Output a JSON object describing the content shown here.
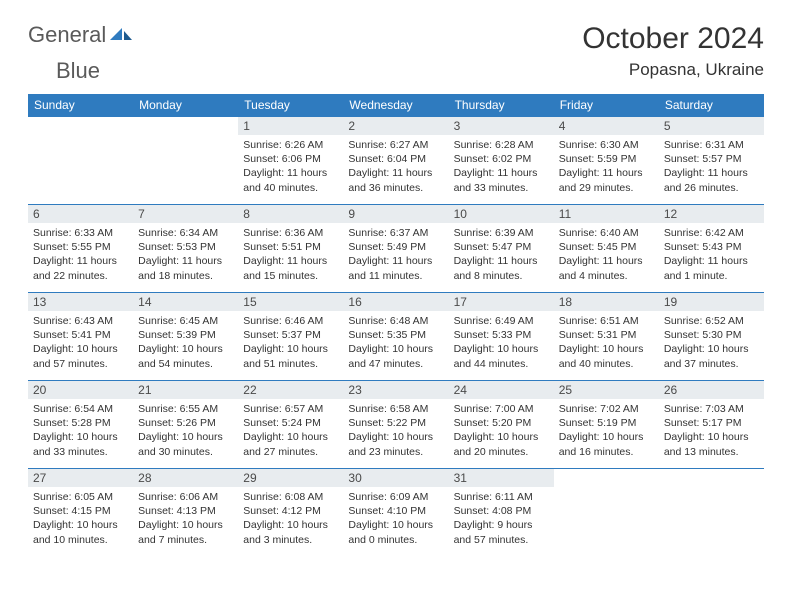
{
  "logo": {
    "text1": "General",
    "text2": "Blue"
  },
  "header": {
    "title": "October 2024",
    "location": "Popasna, Ukraine"
  },
  "colors": {
    "header_bg": "#2f7bbf",
    "header_text": "#ffffff",
    "daynum_bg": "#e8ecef",
    "cell_border": "#2f7bbf",
    "body_text": "#333333",
    "logo_gray": "#5a5a5a",
    "logo_blue": "#2f7bbf"
  },
  "weekdays": [
    "Sunday",
    "Monday",
    "Tuesday",
    "Wednesday",
    "Thursday",
    "Friday",
    "Saturday"
  ],
  "weeks": [
    [
      null,
      null,
      {
        "n": "1",
        "sr": "6:26 AM",
        "ss": "6:06 PM",
        "dl": "11 hours and 40 minutes."
      },
      {
        "n": "2",
        "sr": "6:27 AM",
        "ss": "6:04 PM",
        "dl": "11 hours and 36 minutes."
      },
      {
        "n": "3",
        "sr": "6:28 AM",
        "ss": "6:02 PM",
        "dl": "11 hours and 33 minutes."
      },
      {
        "n": "4",
        "sr": "6:30 AM",
        "ss": "5:59 PM",
        "dl": "11 hours and 29 minutes."
      },
      {
        "n": "5",
        "sr": "6:31 AM",
        "ss": "5:57 PM",
        "dl": "11 hours and 26 minutes."
      }
    ],
    [
      {
        "n": "6",
        "sr": "6:33 AM",
        "ss": "5:55 PM",
        "dl": "11 hours and 22 minutes."
      },
      {
        "n": "7",
        "sr": "6:34 AM",
        "ss": "5:53 PM",
        "dl": "11 hours and 18 minutes."
      },
      {
        "n": "8",
        "sr": "6:36 AM",
        "ss": "5:51 PM",
        "dl": "11 hours and 15 minutes."
      },
      {
        "n": "9",
        "sr": "6:37 AM",
        "ss": "5:49 PM",
        "dl": "11 hours and 11 minutes."
      },
      {
        "n": "10",
        "sr": "6:39 AM",
        "ss": "5:47 PM",
        "dl": "11 hours and 8 minutes."
      },
      {
        "n": "11",
        "sr": "6:40 AM",
        "ss": "5:45 PM",
        "dl": "11 hours and 4 minutes."
      },
      {
        "n": "12",
        "sr": "6:42 AM",
        "ss": "5:43 PM",
        "dl": "11 hours and 1 minute."
      }
    ],
    [
      {
        "n": "13",
        "sr": "6:43 AM",
        "ss": "5:41 PM",
        "dl": "10 hours and 57 minutes."
      },
      {
        "n": "14",
        "sr": "6:45 AM",
        "ss": "5:39 PM",
        "dl": "10 hours and 54 minutes."
      },
      {
        "n": "15",
        "sr": "6:46 AM",
        "ss": "5:37 PM",
        "dl": "10 hours and 51 minutes."
      },
      {
        "n": "16",
        "sr": "6:48 AM",
        "ss": "5:35 PM",
        "dl": "10 hours and 47 minutes."
      },
      {
        "n": "17",
        "sr": "6:49 AM",
        "ss": "5:33 PM",
        "dl": "10 hours and 44 minutes."
      },
      {
        "n": "18",
        "sr": "6:51 AM",
        "ss": "5:31 PM",
        "dl": "10 hours and 40 minutes."
      },
      {
        "n": "19",
        "sr": "6:52 AM",
        "ss": "5:30 PM",
        "dl": "10 hours and 37 minutes."
      }
    ],
    [
      {
        "n": "20",
        "sr": "6:54 AM",
        "ss": "5:28 PM",
        "dl": "10 hours and 33 minutes."
      },
      {
        "n": "21",
        "sr": "6:55 AM",
        "ss": "5:26 PM",
        "dl": "10 hours and 30 minutes."
      },
      {
        "n": "22",
        "sr": "6:57 AM",
        "ss": "5:24 PM",
        "dl": "10 hours and 27 minutes."
      },
      {
        "n": "23",
        "sr": "6:58 AM",
        "ss": "5:22 PM",
        "dl": "10 hours and 23 minutes."
      },
      {
        "n": "24",
        "sr": "7:00 AM",
        "ss": "5:20 PM",
        "dl": "10 hours and 20 minutes."
      },
      {
        "n": "25",
        "sr": "7:02 AM",
        "ss": "5:19 PM",
        "dl": "10 hours and 16 minutes."
      },
      {
        "n": "26",
        "sr": "7:03 AM",
        "ss": "5:17 PM",
        "dl": "10 hours and 13 minutes."
      }
    ],
    [
      {
        "n": "27",
        "sr": "6:05 AM",
        "ss": "4:15 PM",
        "dl": "10 hours and 10 minutes."
      },
      {
        "n": "28",
        "sr": "6:06 AM",
        "ss": "4:13 PM",
        "dl": "10 hours and 7 minutes."
      },
      {
        "n": "29",
        "sr": "6:08 AM",
        "ss": "4:12 PM",
        "dl": "10 hours and 3 minutes."
      },
      {
        "n": "30",
        "sr": "6:09 AM",
        "ss": "4:10 PM",
        "dl": "10 hours and 0 minutes."
      },
      {
        "n": "31",
        "sr": "6:11 AM",
        "ss": "4:08 PM",
        "dl": "9 hours and 57 minutes."
      },
      null,
      null
    ]
  ],
  "labels": {
    "sunrise": "Sunrise:",
    "sunset": "Sunset:",
    "daylight": "Daylight:"
  }
}
